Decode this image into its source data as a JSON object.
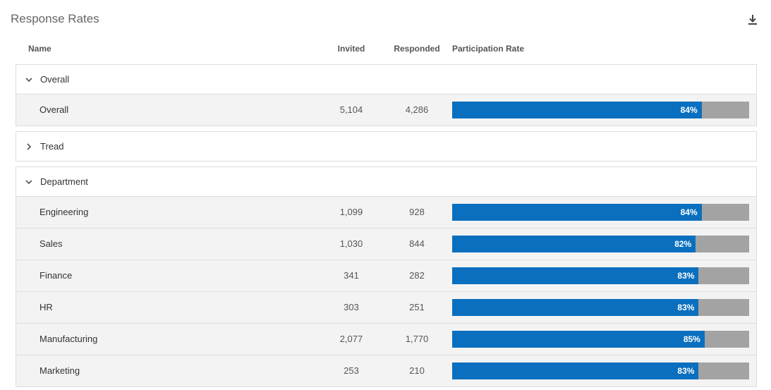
{
  "title": "Response Rates",
  "colors": {
    "bar_fill": "#0a6fbf",
    "bar_track": "#a3a3a3",
    "row_bg": "#f3f3f3"
  },
  "icons": {
    "download": "download-icon",
    "expanded": "chevron-down-icon",
    "collapsed": "chevron-right-icon"
  },
  "columns": {
    "name": "Name",
    "invited": "Invited",
    "responded": "Responded",
    "rate": "Participation Rate"
  },
  "groups": [
    {
      "label": "Overall",
      "expanded": true,
      "rows": [
        {
          "name": "Overall",
          "invited": "5,104",
          "responded": "4,286",
          "rate": 84,
          "rate_label": "84%"
        }
      ]
    },
    {
      "label": "Tread",
      "expanded": false,
      "rows": []
    },
    {
      "label": "Department",
      "expanded": true,
      "rows": [
        {
          "name": "Engineering",
          "invited": "1,099",
          "responded": "928",
          "rate": 84,
          "rate_label": "84%"
        },
        {
          "name": "Sales",
          "invited": "1,030",
          "responded": "844",
          "rate": 82,
          "rate_label": "82%"
        },
        {
          "name": "Finance",
          "invited": "341",
          "responded": "282",
          "rate": 83,
          "rate_label": "83%"
        },
        {
          "name": "HR",
          "invited": "303",
          "responded": "251",
          "rate": 83,
          "rate_label": "83%"
        },
        {
          "name": "Manufacturing",
          "invited": "2,077",
          "responded": "1,770",
          "rate": 85,
          "rate_label": "85%"
        },
        {
          "name": "Marketing",
          "invited": "253",
          "responded": "210",
          "rate": 83,
          "rate_label": "83%"
        }
      ]
    }
  ]
}
